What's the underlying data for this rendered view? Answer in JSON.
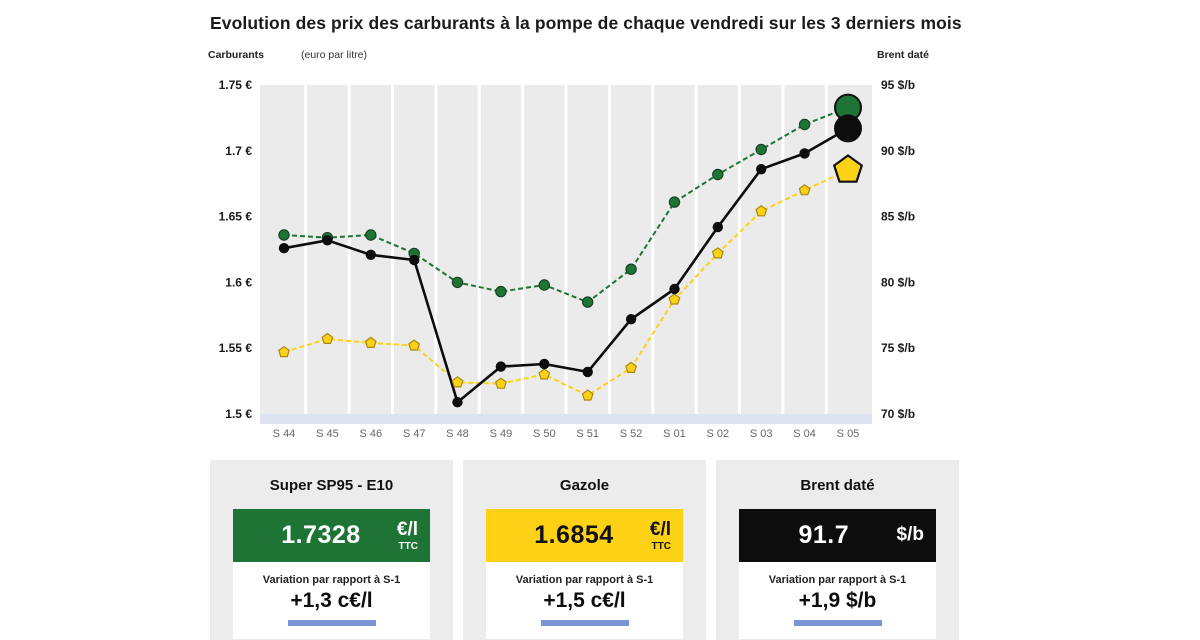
{
  "page": {
    "title": "Evolution des prix des carburants à la pompe de chaque vendredi sur les 3  derniers mois"
  },
  "chart_header": {
    "left_title": "Carburants",
    "left_unit": "(euro par litre)",
    "right_title": "Brent daté"
  },
  "chart_data": {
    "type": "line",
    "title": "Evolution des prix des carburants à la pompe de chaque vendredi sur les 3 derniers mois",
    "plot_bg": "#ebebeb",
    "baseline_color": "#dde3f0",
    "grid": "vertical-white-lines",
    "categories": [
      "S 44",
      "S 45",
      "S 46",
      "S 47",
      "S 48",
      "S 49",
      "S 50",
      "S 51",
      "S 52",
      "S 01",
      "S 02",
      "S 03",
      "S 04",
      "S 05"
    ],
    "left_axis": {
      "title": "Carburants (euro par litre)",
      "min": 1.5,
      "max": 1.75,
      "ticks": [
        "1.75 €",
        "1.7 €",
        "1.65 €",
        "1.6 €",
        "1.55 €",
        "1.5 €"
      ]
    },
    "right_axis": {
      "title": "Brent daté",
      "min": 70,
      "max": 95,
      "ticks": [
        "95 $/b",
        "90 $/b",
        "85 $/b",
        "80 $/b",
        "75 $/b",
        "70 $/b"
      ]
    },
    "series": [
      {
        "name": "Super SP95 - E10",
        "axis": "left",
        "color": "#1e7434",
        "marker_outline": "#14381f",
        "line": "dashed",
        "marker": "circle",
        "values": [
          1.636,
          1.634,
          1.636,
          1.622,
          1.6,
          1.593,
          1.598,
          1.585,
          1.61,
          1.661,
          1.682,
          1.701,
          1.72,
          1.7328
        ]
      },
      {
        "name": "Gazole",
        "axis": "left",
        "color": "#fdd116",
        "marker_outline": "#a8890f",
        "line": "dashed",
        "marker": "pentagon",
        "values": [
          1.547,
          1.557,
          1.554,
          1.552,
          1.524,
          1.523,
          1.53,
          1.514,
          1.535,
          1.587,
          1.622,
          1.654,
          1.67,
          1.6854
        ]
      },
      {
        "name": "Brent daté",
        "axis": "right",
        "color": "#0d0d0d",
        "marker_outline": "none",
        "line": "solid",
        "marker": "circle",
        "values": [
          82.6,
          83.2,
          82.1,
          81.7,
          70.9,
          73.6,
          73.8,
          73.2,
          77.2,
          79.5,
          84.2,
          88.6,
          89.8,
          91.7
        ]
      }
    ]
  },
  "cards": [
    {
      "title": "Super SP95 - E10",
      "value": "1.7328",
      "unit": "€/l",
      "unit_sub": "TTC",
      "box_color": "#1e7434",
      "text_color": "#ffffff",
      "variation_label": "Variation par rapport à S-1",
      "variation_value": "+1,3 c€/l",
      "action_color": "#7b94d6"
    },
    {
      "title": "Gazole",
      "value": "1.6854",
      "unit": "€/l",
      "unit_sub": "TTC",
      "box_color": "#fdd116",
      "text_color": "#111111",
      "variation_label": "Variation par rapport à S-1",
      "variation_value": "+1,5 c€/l",
      "action_color": "#7b94d6"
    },
    {
      "title": "Brent daté",
      "value": "91.7",
      "unit": "$/b",
      "unit_sub": "",
      "box_color": "#0d0d0d",
      "text_color": "#ffffff",
      "variation_label": "Variation par rapport à S-1",
      "variation_value": "+1,9 $/b",
      "action_color": "#7b94d6"
    }
  ]
}
